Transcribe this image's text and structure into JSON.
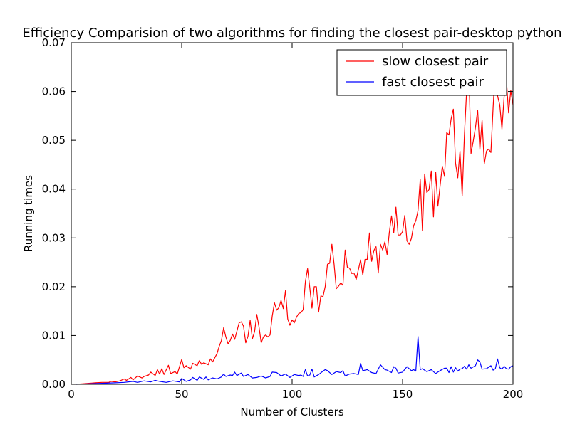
{
  "chart_data": {
    "type": "line",
    "title": "Efficiency Comparision of two algorithms for finding the closest pair-desktop python",
    "xlabel": "Number of Clusters",
    "ylabel": "Running times",
    "xlim": [
      0,
      200
    ],
    "ylim": [
      0,
      0.07
    ],
    "xticks": [
      "0",
      "50",
      "100",
      "150",
      "200"
    ],
    "yticks": [
      "0.00",
      "0.01",
      "0.02",
      "0.03",
      "0.04",
      "0.05",
      "0.06",
      "0.07"
    ],
    "grid": false,
    "legend": "top-right",
    "series": [
      {
        "name": "slow closest pair",
        "color": "#ff0000",
        "points": [
          [
            2,
            0.0
          ],
          [
            5,
            0.0001
          ],
          [
            8,
            0.0002
          ],
          [
            11,
            0.0003
          ],
          [
            14,
            0.0004
          ],
          [
            17,
            0.0004
          ],
          [
            18,
            0.0006
          ],
          [
            20,
            0.0005
          ],
          [
            22,
            0.0007
          ],
          [
            24,
            0.0011
          ],
          [
            25,
            0.0008
          ],
          [
            27,
            0.0014
          ],
          [
            28,
            0.0009
          ],
          [
            30,
            0.0017
          ],
          [
            32,
            0.0013
          ],
          [
            33,
            0.0016
          ],
          [
            35,
            0.0019
          ],
          [
            36,
            0.0025
          ],
          [
            38,
            0.0018
          ],
          [
            39,
            0.003
          ],
          [
            40,
            0.0021
          ],
          [
            41,
            0.0032
          ],
          [
            42,
            0.002
          ],
          [
            44,
            0.0039
          ],
          [
            45,
            0.0022
          ],
          [
            47,
            0.0026
          ],
          [
            48,
            0.0021
          ],
          [
            50,
            0.0051
          ],
          [
            51,
            0.0034
          ],
          [
            52,
            0.0038
          ],
          [
            54,
            0.0031
          ],
          [
            55,
            0.0043
          ],
          [
            57,
            0.0038
          ],
          [
            58,
            0.0049
          ],
          [
            59,
            0.0041
          ],
          [
            60,
            0.0044
          ],
          [
            62,
            0.004
          ],
          [
            63,
            0.0052
          ],
          [
            64,
            0.0046
          ],
          [
            66,
            0.0063
          ],
          [
            67,
            0.0078
          ],
          [
            68,
            0.009
          ],
          [
            69,
            0.0116
          ],
          [
            70,
            0.0097
          ],
          [
            71,
            0.0083
          ],
          [
            72,
            0.009
          ],
          [
            73,
            0.0103
          ],
          [
            74,
            0.0092
          ],
          [
            76,
            0.0126
          ],
          [
            77,
            0.0128
          ],
          [
            78,
            0.0119
          ],
          [
            79,
            0.0085
          ],
          [
            80,
            0.0098
          ],
          [
            81,
            0.0131
          ],
          [
            82,
            0.0093
          ],
          [
            83,
            0.0108
          ],
          [
            84,
            0.0143
          ],
          [
            85,
            0.0118
          ],
          [
            86,
            0.0085
          ],
          [
            87,
            0.0097
          ],
          [
            88,
            0.0101
          ],
          [
            89,
            0.0097
          ],
          [
            90,
            0.0101
          ],
          [
            91,
            0.014
          ],
          [
            92,
            0.0167
          ],
          [
            93,
            0.0152
          ],
          [
            94,
            0.0157
          ],
          [
            95,
            0.0172
          ],
          [
            96,
            0.0155
          ],
          [
            97,
            0.0192
          ],
          [
            98,
            0.0134
          ],
          [
            99,
            0.0121
          ],
          [
            100,
            0.0132
          ],
          [
            101,
            0.0126
          ],
          [
            102,
            0.0138
          ],
          [
            103,
            0.0145
          ],
          [
            104,
            0.0147
          ],
          [
            105,
            0.0153
          ],
          [
            106,
            0.021
          ],
          [
            107,
            0.0237
          ],
          [
            108,
            0.0198
          ],
          [
            109,
            0.0156
          ],
          [
            110,
            0.02
          ],
          [
            111,
            0.02
          ],
          [
            112,
            0.0148
          ],
          [
            113,
            0.0181
          ],
          [
            114,
            0.018
          ],
          [
            115,
            0.0201
          ],
          [
            116,
            0.0246
          ],
          [
            117,
            0.0248
          ],
          [
            118,
            0.0287
          ],
          [
            119,
            0.0246
          ],
          [
            120,
            0.0196
          ],
          [
            121,
            0.0201
          ],
          [
            122,
            0.0208
          ],
          [
            123,
            0.0203
          ],
          [
            124,
            0.0275
          ],
          [
            125,
            0.024
          ],
          [
            126,
            0.0238
          ],
          [
            127,
            0.0227
          ],
          [
            128,
            0.0228
          ],
          [
            129,
            0.0215
          ],
          [
            130,
            0.0235
          ],
          [
            131,
            0.0255
          ],
          [
            132,
            0.0224
          ],
          [
            133,
            0.0256
          ],
          [
            134,
            0.0256
          ],
          [
            135,
            0.031
          ],
          [
            136,
            0.0252
          ],
          [
            137,
            0.0274
          ],
          [
            138,
            0.0282
          ],
          [
            139,
            0.0228
          ],
          [
            140,
            0.0287
          ],
          [
            141,
            0.0275
          ],
          [
            142,
            0.0292
          ],
          [
            143,
            0.0266
          ],
          [
            144,
            0.0311
          ],
          [
            145,
            0.0345
          ],
          [
            146,
            0.031
          ],
          [
            147,
            0.0363
          ],
          [
            148,
            0.0306
          ],
          [
            149,
            0.0306
          ],
          [
            150,
            0.0313
          ],
          [
            151,
            0.0346
          ],
          [
            152,
            0.0294
          ],
          [
            153,
            0.0287
          ],
          [
            154,
            0.0299
          ],
          [
            155,
            0.0325
          ],
          [
            156,
            0.0335
          ],
          [
            157,
            0.0356
          ],
          [
            158,
            0.042
          ],
          [
            159,
            0.0315
          ],
          [
            160,
            0.0431
          ],
          [
            161,
            0.0393
          ],
          [
            162,
            0.0399
          ],
          [
            163,
            0.0437
          ],
          [
            164,
            0.0343
          ],
          [
            165,
            0.0435
          ],
          [
            166,
            0.0365
          ],
          [
            167,
            0.0407
          ],
          [
            168,
            0.0447
          ],
          [
            169,
            0.0426
          ],
          [
            170,
            0.0516
          ],
          [
            171,
            0.0511
          ],
          [
            172,
            0.0544
          ],
          [
            173,
            0.0564
          ],
          [
            174,
            0.0453
          ],
          [
            175,
            0.0423
          ],
          [
            176,
            0.0478
          ],
          [
            177,
            0.0386
          ],
          [
            178,
            0.0511
          ],
          [
            179,
            0.06
          ],
          [
            180,
            0.0648
          ],
          [
            181,
            0.0473
          ],
          [
            182,
            0.0498
          ],
          [
            183,
            0.0526
          ],
          [
            184,
            0.0562
          ],
          [
            185,
            0.0481
          ],
          [
            186,
            0.0541
          ],
          [
            187,
            0.0452
          ],
          [
            188,
            0.0478
          ],
          [
            189,
            0.0482
          ],
          [
            190,
            0.0475
          ],
          [
            191,
            0.0567
          ],
          [
            192,
            0.065
          ],
          [
            193,
            0.0591
          ],
          [
            194,
            0.0573
          ],
          [
            195,
            0.0523
          ],
          [
            196,
            0.059
          ],
          [
            197,
            0.0626
          ],
          [
            198,
            0.0556
          ],
          [
            199,
            0.0602
          ],
          [
            200,
            0.0573
          ]
        ]
      },
      {
        "name": "fast closest pair",
        "color": "#0000ff",
        "points": [
          [
            2,
            0.0
          ],
          [
            8,
            0.0001
          ],
          [
            14,
            0.0002
          ],
          [
            20,
            0.0003
          ],
          [
            24,
            0.0004
          ],
          [
            28,
            0.0006
          ],
          [
            30,
            0.0004
          ],
          [
            33,
            0.0007
          ],
          [
            36,
            0.0005
          ],
          [
            38,
            0.0008
          ],
          [
            40,
            0.0006
          ],
          [
            43,
            0.0004
          ],
          [
            46,
            0.0007
          ],
          [
            49,
            0.0005
          ],
          [
            50,
            0.0012
          ],
          [
            52,
            0.0006
          ],
          [
            54,
            0.0009
          ],
          [
            55,
            0.0014
          ],
          [
            57,
            0.0008
          ],
          [
            58,
            0.0015
          ],
          [
            60,
            0.001
          ],
          [
            61,
            0.0015
          ],
          [
            62,
            0.0009
          ],
          [
            64,
            0.0013
          ],
          [
            66,
            0.0011
          ],
          [
            68,
            0.0015
          ],
          [
            69,
            0.0021
          ],
          [
            70,
            0.0016
          ],
          [
            72,
            0.0019
          ],
          [
            73,
            0.0018
          ],
          [
            74,
            0.0025
          ],
          [
            75,
            0.0018
          ],
          [
            77,
            0.0023
          ],
          [
            78,
            0.0016
          ],
          [
            80,
            0.002
          ],
          [
            82,
            0.0013
          ],
          [
            84,
            0.0014
          ],
          [
            86,
            0.0017
          ],
          [
            88,
            0.0013
          ],
          [
            90,
            0.0016
          ],
          [
            91,
            0.0025
          ],
          [
            93,
            0.0024
          ],
          [
            95,
            0.0017
          ],
          [
            97,
            0.0021
          ],
          [
            99,
            0.0014
          ],
          [
            101,
            0.002
          ],
          [
            103,
            0.0018
          ],
          [
            104,
            0.0019
          ],
          [
            105,
            0.0016
          ],
          [
            106,
            0.003
          ],
          [
            107,
            0.0017
          ],
          [
            108,
            0.0019
          ],
          [
            109,
            0.0031
          ],
          [
            110,
            0.0015
          ],
          [
            112,
            0.002
          ],
          [
            114,
            0.0027
          ],
          [
            115,
            0.003
          ],
          [
            116,
            0.0028
          ],
          [
            118,
            0.002
          ],
          [
            120,
            0.0026
          ],
          [
            122,
            0.0024
          ],
          [
            123,
            0.0028
          ],
          [
            124,
            0.0017
          ],
          [
            126,
            0.0021
          ],
          [
            128,
            0.0022
          ],
          [
            130,
            0.002
          ],
          [
            131,
            0.0043
          ],
          [
            132,
            0.0028
          ],
          [
            134,
            0.003
          ],
          [
            136,
            0.0024
          ],
          [
            138,
            0.0022
          ],
          [
            140,
            0.004
          ],
          [
            142,
            0.003
          ],
          [
            143,
            0.0029
          ],
          [
            145,
            0.0024
          ],
          [
            146,
            0.0036
          ],
          [
            147,
            0.0033
          ],
          [
            148,
            0.0023
          ],
          [
            150,
            0.0025
          ],
          [
            152,
            0.0036
          ],
          [
            154,
            0.0028
          ],
          [
            155,
            0.003
          ],
          [
            156,
            0.0027
          ],
          [
            157,
            0.0098
          ],
          [
            158,
            0.003
          ],
          [
            159,
            0.0032
          ],
          [
            161,
            0.0026
          ],
          [
            163,
            0.003
          ],
          [
            165,
            0.0022
          ],
          [
            167,
            0.0028
          ],
          [
            169,
            0.0033
          ],
          [
            170,
            0.0033
          ],
          [
            171,
            0.0024
          ],
          [
            172,
            0.0036
          ],
          [
            173,
            0.0025
          ],
          [
            174,
            0.0034
          ],
          [
            175,
            0.0027
          ],
          [
            176,
            0.0031
          ],
          [
            177,
            0.0032
          ],
          [
            178,
            0.0037
          ],
          [
            179,
            0.0031
          ],
          [
            180,
            0.004
          ],
          [
            181,
            0.0033
          ],
          [
            183,
            0.0038
          ],
          [
            184,
            0.005
          ],
          [
            185,
            0.0046
          ],
          [
            186,
            0.0031
          ],
          [
            188,
            0.0032
          ],
          [
            189,
            0.0035
          ],
          [
            190,
            0.0038
          ],
          [
            191,
            0.0029
          ],
          [
            192,
            0.0032
          ],
          [
            193,
            0.0052
          ],
          [
            194,
            0.0034
          ],
          [
            195,
            0.0031
          ],
          [
            196,
            0.0037
          ],
          [
            197,
            0.0032
          ],
          [
            198,
            0.0031
          ],
          [
            199,
            0.0036
          ],
          [
            200,
            0.0038
          ]
        ]
      }
    ]
  }
}
